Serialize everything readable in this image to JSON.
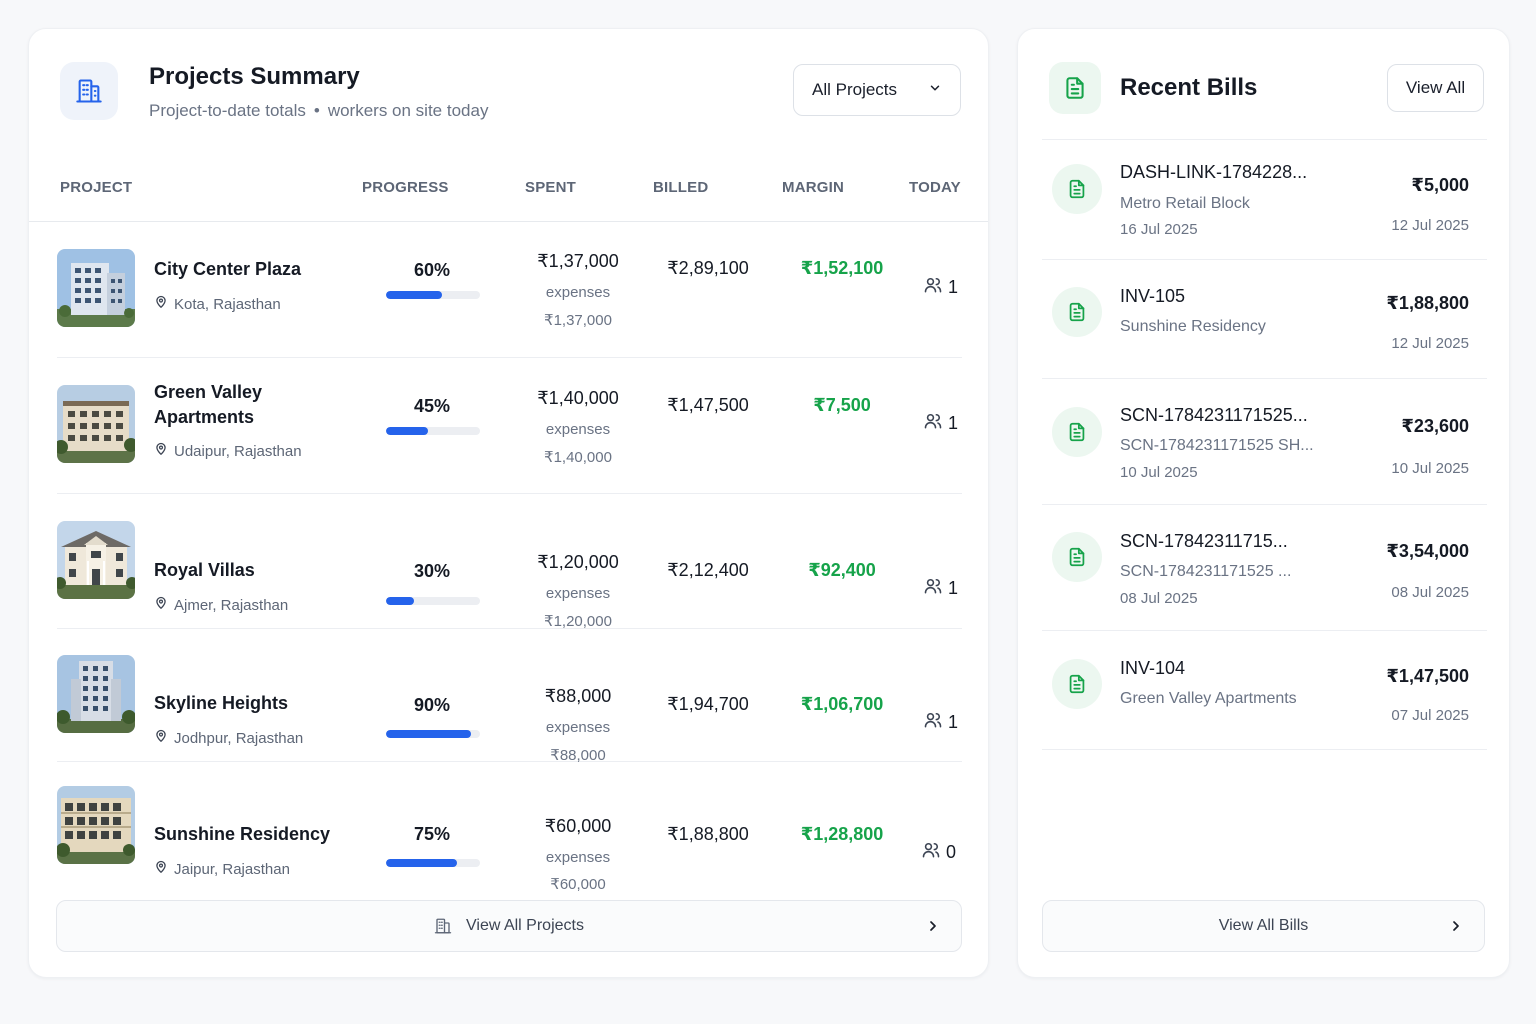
{
  "projects_panel": {
    "title": "Projects Summary",
    "subtitle_left": "Project-to-date totals",
    "subtitle_sep": "•",
    "subtitle_right": "workers on site today",
    "filter_value": "All Projects",
    "columns": [
      "PROJECT",
      "PROGRESS",
      "SPENT",
      "BILLED",
      "MARGIN",
      "TODAY"
    ],
    "rows": [
      {
        "name": "City Center Plaza",
        "location": "Kota, Rajasthan",
        "progress_label": "60%",
        "progress": 0.6,
        "spent": "₹1,37,000",
        "expenses_label": "expenses",
        "expenses": "₹1,37,000",
        "billed": "₹2,89,100",
        "margin": "₹1,52,100",
        "today": "1"
      },
      {
        "name": "Green Valley Apartments",
        "location": "Udaipur, Rajasthan",
        "progress_label": "45%",
        "progress": 0.45,
        "spent": "₹1,40,000",
        "expenses_label": "expenses",
        "expenses": "₹1,40,000",
        "billed": "₹1,47,500",
        "margin": "₹7,500",
        "today": "1"
      },
      {
        "name": "Royal Villas",
        "location": "Ajmer, Rajasthan",
        "progress_label": "30%",
        "progress": 0.3,
        "spent": "₹1,20,000",
        "expenses_label": "expenses",
        "expenses": "₹1,20,000",
        "billed": "₹2,12,400",
        "margin": "₹92,400",
        "today": "1"
      },
      {
        "name": "Skyline Heights",
        "location": "Jodhpur, Rajasthan",
        "progress_label": "90%",
        "progress": 0.9,
        "spent": "₹88,000",
        "expenses_label": "expenses",
        "expenses": "₹88,000",
        "billed": "₹1,94,700",
        "margin": "₹1,06,700",
        "today": "1"
      },
      {
        "name": "Sunshine Residency",
        "location": "Jaipur, Rajasthan",
        "progress_label": "75%",
        "progress": 0.75,
        "spent": "₹60,000",
        "expenses_label": "expenses",
        "expenses": "₹60,000",
        "billed": "₹1,88,800",
        "margin": "₹1,28,800",
        "today": "0"
      }
    ],
    "footer_label": "View All Projects",
    "icons": {
      "header": "building-icon",
      "location": "map-pin-icon",
      "workers": "users-icon",
      "footer": "building-icon",
      "chevron": "chevron-right-icon",
      "dropdown": "chevron-down-icon"
    }
  },
  "bills_panel": {
    "title": "Recent Bills",
    "view_all_label": "View All",
    "bills": [
      {
        "id": "DASH-LINK-1784228...",
        "project": "Metro Retail Block",
        "date": "16 Jul 2025",
        "amount": "₹5,000",
        "right_date": "12 Jul 2025"
      },
      {
        "id": "INV-105",
        "project": "Sunshine Residency",
        "date": "",
        "amount": "₹1,88,800",
        "right_date": "12 Jul 2025"
      },
      {
        "id": "SCN-1784231171525...",
        "project": "SCN-1784231171525 SH...",
        "date": "10 Jul 2025",
        "amount": "₹23,600",
        "right_date": "10 Jul 2025"
      },
      {
        "id": "SCN-17842311715...",
        "project": "SCN-1784231171525 ...",
        "date": "08 Jul 2025",
        "amount": "₹3,54,000",
        "right_date": "08 Jul 2025"
      },
      {
        "id": "INV-104",
        "project": "Green Valley Apartments",
        "date": "",
        "amount": "₹1,47,500",
        "right_date": "07 Jul 2025"
      }
    ],
    "footer_label": "View All Bills",
    "icons": {
      "header": "document-icon",
      "bill": "document-icon",
      "chevron": "chevron-right-icon"
    }
  },
  "colors": {
    "accent": "#2563eb",
    "positive": "#16a34a",
    "bill_icon": "#16a34a"
  }
}
